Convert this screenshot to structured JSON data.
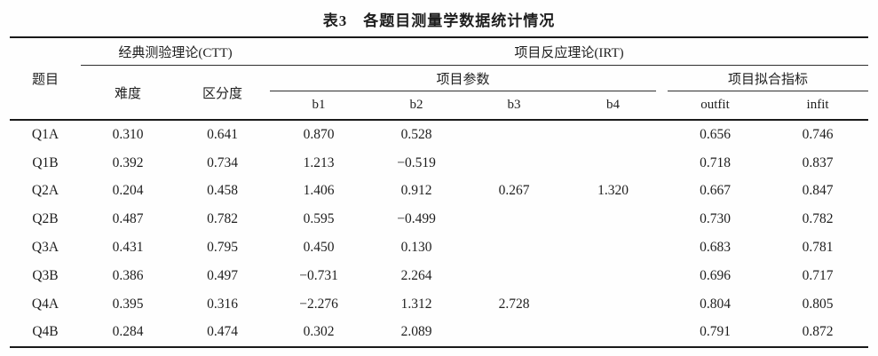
{
  "colors": {
    "background": "#fefefe",
    "text": "#1e1e1e",
    "rule_thick": "#1a1a1a",
    "rule_thin": "#2e2e2e"
  },
  "table": {
    "title": "表3　各题目测量学数据统计情况",
    "col_item": "题目",
    "group_ctt": "经典测验理论(CTT)",
    "group_irt": "项目反应理论(IRT)",
    "col_difficulty": "难度",
    "col_discrimination": "区分度",
    "group_params": "项目参数",
    "group_fit": "项目拟合指标",
    "param_cols": [
      "b1",
      "b2",
      "b3",
      "b4"
    ],
    "fit_cols": [
      "outfit",
      "infit"
    ],
    "rows": [
      {
        "item": "Q1A",
        "difficulty": "0.310",
        "discrimination": "0.641",
        "b1": "0.870",
        "b2": "0.528",
        "b3": "",
        "b4": "",
        "outfit": "0.656",
        "infit": "0.746"
      },
      {
        "item": "Q1B",
        "difficulty": "0.392",
        "discrimination": "0.734",
        "b1": "1.213",
        "b2": "−0.519",
        "b3": "",
        "b4": "",
        "outfit": "0.718",
        "infit": "0.837"
      },
      {
        "item": "Q2A",
        "difficulty": "0.204",
        "discrimination": "0.458",
        "b1": "1.406",
        "b2": "0.912",
        "b3": "0.267",
        "b4": "1.320",
        "outfit": "0.667",
        "infit": "0.847"
      },
      {
        "item": "Q2B",
        "difficulty": "0.487",
        "discrimination": "0.782",
        "b1": "0.595",
        "b2": "−0.499",
        "b3": "",
        "b4": "",
        "outfit": "0.730",
        "infit": "0.782"
      },
      {
        "item": "Q3A",
        "difficulty": "0.431",
        "discrimination": "0.795",
        "b1": "0.450",
        "b2": "0.130",
        "b3": "",
        "b4": "",
        "outfit": "0.683",
        "infit": "0.781"
      },
      {
        "item": "Q3B",
        "difficulty": "0.386",
        "discrimination": "0.497",
        "b1": "−0.731",
        "b2": "2.264",
        "b3": "",
        "b4": "",
        "outfit": "0.696",
        "infit": "0.717"
      },
      {
        "item": "Q4A",
        "difficulty": "0.395",
        "discrimination": "0.316",
        "b1": "−2.276",
        "b2": "1.312",
        "b3": "2.728",
        "b4": "",
        "outfit": "0.804",
        "infit": "0.805"
      },
      {
        "item": "Q4B",
        "difficulty": "0.284",
        "discrimination": "0.474",
        "b1": "0.302",
        "b2": "2.089",
        "b3": "",
        "b4": "",
        "outfit": "0.791",
        "infit": "0.872"
      }
    ]
  }
}
